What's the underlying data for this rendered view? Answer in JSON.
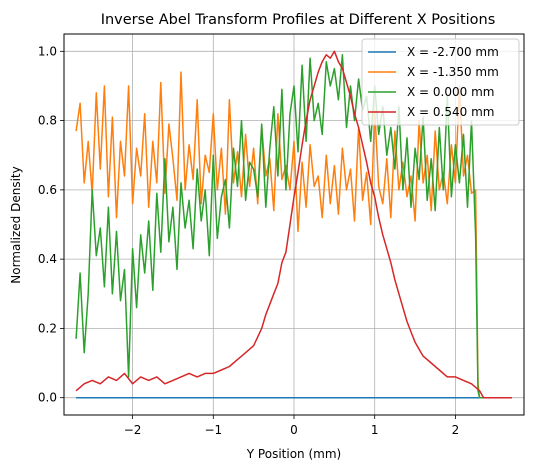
{
  "chart_data": {
    "type": "line",
    "title": "Inverse Abel Transform Profiles at Different X Positions",
    "xlabel": "Y Position (mm)",
    "ylabel": "Normalized Density",
    "xlim": [
      -2.85,
      2.85
    ],
    "ylim": [
      -0.05,
      1.05
    ],
    "xticks": [
      -2,
      -1,
      0,
      1,
      2
    ],
    "xtick_labels": [
      "−2",
      "−1",
      "0",
      "1",
      "2"
    ],
    "yticks": [
      0.0,
      0.2,
      0.4,
      0.6,
      0.8,
      1.0
    ],
    "ytick_labels": [
      "0.0",
      "0.2",
      "0.4",
      "0.6",
      "0.8",
      "1.0"
    ],
    "grid": true,
    "legend_position": "top-right",
    "series": [
      {
        "name": "X = -2.700 mm",
        "color": "#1f77b4",
        "x": [
          -2.7,
          2.7
        ],
        "y": [
          0.0,
          0.0
        ]
      },
      {
        "name": "X = -1.350 mm",
        "color": "#ff7f0e",
        "x": [
          -2.7,
          -2.65,
          -2.6,
          -2.55,
          -2.5,
          -2.45,
          -2.4,
          -2.35,
          -2.3,
          -2.25,
          -2.2,
          -2.15,
          -2.1,
          -2.05,
          -2.0,
          -1.95,
          -1.9,
          -1.85,
          -1.8,
          -1.75,
          -1.7,
          -1.65,
          -1.6,
          -1.55,
          -1.5,
          -1.45,
          -1.4,
          -1.35,
          -1.3,
          -1.25,
          -1.2,
          -1.15,
          -1.1,
          -1.05,
          -1.0,
          -0.95,
          -0.9,
          -0.85,
          -0.8,
          -0.75,
          -0.7,
          -0.65,
          -0.6,
          -0.55,
          -0.5,
          -0.45,
          -0.4,
          -0.35,
          -0.3,
          -0.25,
          -0.2,
          -0.15,
          -0.1,
          -0.05,
          0.0,
          0.05,
          0.1,
          0.15,
          0.2,
          0.25,
          0.3,
          0.35,
          0.4,
          0.45,
          0.5,
          0.55,
          0.6,
          0.65,
          0.7,
          0.75,
          0.8,
          0.85,
          0.9,
          0.95,
          1.0,
          1.05,
          1.1,
          1.15,
          1.2,
          1.25,
          1.3,
          1.35,
          1.4,
          1.45,
          1.5,
          1.55,
          1.6,
          1.65,
          1.7,
          1.75,
          1.8,
          1.85,
          1.9,
          1.95,
          2.0,
          2.05,
          2.1,
          2.15,
          2.2,
          2.25,
          2.28,
          2.3,
          2.35,
          2.4,
          2.5,
          2.6,
          2.7
        ],
        "y": [
          0.77,
          0.85,
          0.62,
          0.74,
          0.59,
          0.88,
          0.66,
          0.9,
          0.58,
          0.81,
          0.52,
          0.74,
          0.64,
          0.9,
          0.56,
          0.72,
          0.64,
          0.82,
          0.55,
          0.74,
          0.62,
          0.91,
          0.59,
          0.79,
          0.69,
          0.57,
          0.94,
          0.6,
          0.73,
          0.63,
          0.86,
          0.56,
          0.7,
          0.65,
          0.82,
          0.6,
          0.72,
          0.53,
          0.86,
          0.62,
          0.71,
          0.58,
          0.76,
          0.61,
          0.72,
          0.56,
          0.78,
          0.64,
          0.69,
          0.54,
          0.82,
          0.63,
          0.67,
          0.6,
          0.74,
          0.48,
          0.68,
          0.55,
          0.73,
          0.61,
          0.64,
          0.52,
          0.7,
          0.56,
          0.67,
          0.53,
          0.72,
          0.6,
          0.66,
          0.51,
          0.78,
          0.57,
          0.65,
          0.5,
          0.83,
          0.61,
          0.56,
          0.69,
          0.52,
          0.77,
          0.6,
          0.68,
          0.58,
          0.64,
          0.51,
          0.8,
          0.62,
          0.7,
          0.54,
          0.77,
          0.6,
          0.65,
          0.56,
          0.73,
          0.62,
          0.9,
          0.64,
          0.7,
          0.59,
          0.6,
          0.04,
          0.0,
          0.0,
          0.0,
          0.0,
          0.0,
          0.0
        ]
      },
      {
        "name": "X = 0.000 mm",
        "color": "#2ca02c",
        "x": [
          -2.7,
          -2.65,
          -2.6,
          -2.55,
          -2.5,
          -2.45,
          -2.4,
          -2.35,
          -2.3,
          -2.25,
          -2.2,
          -2.15,
          -2.1,
          -2.05,
          -2.0,
          -1.95,
          -1.9,
          -1.85,
          -1.8,
          -1.75,
          -1.7,
          -1.65,
          -1.6,
          -1.55,
          -1.5,
          -1.45,
          -1.4,
          -1.35,
          -1.3,
          -1.25,
          -1.2,
          -1.15,
          -1.1,
          -1.05,
          -1.0,
          -0.95,
          -0.9,
          -0.85,
          -0.8,
          -0.75,
          -0.7,
          -0.65,
          -0.6,
          -0.55,
          -0.5,
          -0.45,
          -0.4,
          -0.35,
          -0.3,
          -0.25,
          -0.2,
          -0.15,
          -0.1,
          -0.05,
          0.0,
          0.05,
          0.1,
          0.15,
          0.2,
          0.25,
          0.3,
          0.35,
          0.4,
          0.45,
          0.5,
          0.55,
          0.6,
          0.65,
          0.7,
          0.75,
          0.8,
          0.85,
          0.9,
          0.95,
          1.0,
          1.05,
          1.1,
          1.15,
          1.2,
          1.25,
          1.3,
          1.35,
          1.4,
          1.45,
          1.5,
          1.55,
          1.6,
          1.65,
          1.7,
          1.75,
          1.8,
          1.85,
          1.9,
          1.95,
          2.0,
          2.05,
          2.1,
          2.15,
          2.2,
          2.25,
          2.28,
          2.3,
          2.35,
          2.4,
          2.5,
          2.6,
          2.7
        ],
        "y": [
          0.17,
          0.36,
          0.13,
          0.3,
          0.6,
          0.41,
          0.49,
          0.32,
          0.55,
          0.3,
          0.48,
          0.28,
          0.37,
          0.06,
          0.43,
          0.26,
          0.47,
          0.36,
          0.51,
          0.31,
          0.59,
          0.42,
          0.69,
          0.45,
          0.55,
          0.37,
          0.62,
          0.49,
          0.57,
          0.43,
          0.66,
          0.51,
          0.6,
          0.41,
          0.7,
          0.46,
          0.58,
          0.63,
          0.49,
          0.72,
          0.61,
          0.8,
          0.57,
          0.68,
          0.66,
          0.58,
          0.79,
          0.55,
          0.72,
          0.84,
          0.64,
          0.89,
          0.6,
          0.82,
          0.9,
          0.71,
          0.96,
          0.74,
          0.98,
          0.8,
          0.85,
          0.76,
          0.97,
          0.9,
          0.95,
          0.86,
          0.99,
          0.78,
          0.9,
          0.8,
          0.92,
          0.83,
          0.87,
          0.74,
          0.9,
          0.76,
          0.84,
          0.7,
          0.78,
          0.66,
          0.84,
          0.6,
          0.75,
          0.55,
          0.72,
          0.63,
          0.81,
          0.57,
          0.69,
          0.54,
          0.78,
          0.6,
          0.87,
          0.58,
          0.73,
          0.62,
          0.76,
          0.55,
          0.8,
          0.47,
          0.02,
          0.0,
          0.0,
          0.0,
          0.0,
          0.0,
          0.0
        ]
      },
      {
        "name": "X = 0.540 mm",
        "color": "#d62728",
        "x": [
          -2.7,
          -2.6,
          -2.5,
          -2.4,
          -2.3,
          -2.2,
          -2.1,
          -2.0,
          -1.9,
          -1.8,
          -1.7,
          -1.6,
          -1.5,
          -1.4,
          -1.3,
          -1.2,
          -1.1,
          -1.0,
          -0.9,
          -0.8,
          -0.7,
          -0.6,
          -0.5,
          -0.4,
          -0.35,
          -0.3,
          -0.25,
          -0.2,
          -0.15,
          -0.1,
          -0.05,
          0.0,
          0.05,
          0.1,
          0.15,
          0.2,
          0.25,
          0.3,
          0.35,
          0.4,
          0.45,
          0.5,
          0.55,
          0.6,
          0.65,
          0.7,
          0.75,
          0.8,
          0.85,
          0.9,
          0.95,
          1.0,
          1.05,
          1.1,
          1.15,
          1.2,
          1.25,
          1.3,
          1.35,
          1.4,
          1.45,
          1.5,
          1.55,
          1.6,
          1.7,
          1.8,
          1.9,
          2.0,
          2.1,
          2.2,
          2.25,
          2.3,
          2.35,
          2.4,
          2.5,
          2.6,
          2.7
        ],
        "y": [
          0.02,
          0.04,
          0.05,
          0.04,
          0.06,
          0.05,
          0.07,
          0.04,
          0.06,
          0.05,
          0.06,
          0.04,
          0.05,
          0.06,
          0.07,
          0.06,
          0.07,
          0.07,
          0.08,
          0.09,
          0.11,
          0.13,
          0.15,
          0.2,
          0.24,
          0.27,
          0.3,
          0.33,
          0.39,
          0.42,
          0.5,
          0.58,
          0.65,
          0.73,
          0.8,
          0.86,
          0.9,
          0.94,
          0.97,
          0.99,
          0.98,
          1.0,
          0.97,
          0.95,
          0.91,
          0.87,
          0.82,
          0.78,
          0.73,
          0.68,
          0.62,
          0.58,
          0.52,
          0.47,
          0.43,
          0.39,
          0.34,
          0.3,
          0.26,
          0.22,
          0.19,
          0.16,
          0.14,
          0.12,
          0.1,
          0.08,
          0.06,
          0.06,
          0.05,
          0.04,
          0.03,
          0.02,
          0.0,
          0.0,
          0.0,
          0.0,
          0.0
        ]
      }
    ]
  }
}
